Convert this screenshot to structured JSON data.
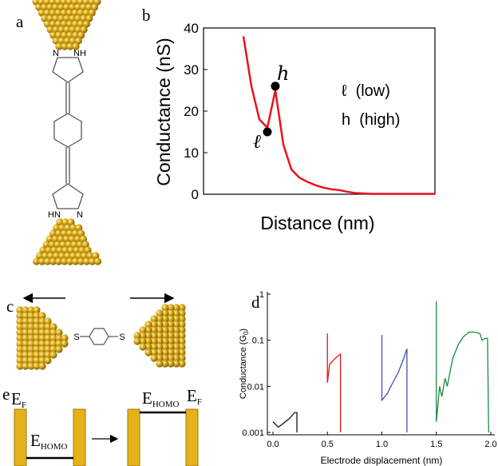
{
  "labels": [
    "a",
    "b",
    "c",
    "d",
    "e"
  ],
  "molecule_a": {
    "top": [
      "N",
      "NH"
    ],
    "bottom": [
      "HN",
      "N"
    ]
  },
  "molecule_c": {
    "atoms": [
      "S",
      "S"
    ]
  },
  "chart_data": [
    {
      "type": "line",
      "y_label": "Conductance (nS)",
      "x_label": "Distance (nm)",
      "ylim": [
        0,
        40
      ],
      "yticks": [
        0,
        10,
        20,
        30,
        40
      ],
      "series": [
        {
          "color": "#e8141a",
          "values": [
            null,
            null,
            null,
            null,
            null,
            38,
            26,
            18,
            16,
            25,
            12,
            6,
            4,
            3,
            2.2,
            1.6,
            1.2,
            1,
            0.6,
            0.3,
            0.2,
            0.1,
            0.1,
            0.1,
            0.1,
            0.1,
            0.1,
            0.1,
            0.1,
            0.1
          ]
        },
        {
          "color": "#000000",
          "marker": "dot",
          "values": [
            null,
            null,
            null,
            null,
            null,
            null,
            null,
            null,
            15,
            26,
            null,
            null,
            null,
            null,
            null,
            null,
            null,
            null,
            null,
            null,
            null,
            null,
            null,
            null,
            null,
            null,
            null,
            null,
            null,
            null
          ]
        }
      ],
      "point_labels": [
        "ℓ",
        "h"
      ],
      "legend_text": [
        "ℓ  (low)",
        "h  (high)"
      ]
    },
    {
      "type": "line",
      "log_y": true,
      "y_label": {
        "main": "Conductance (G",
        "sub": "0",
        "end": ")"
      },
      "x_label": "Electrode displacement (nm)",
      "xlim": [
        0,
        2
      ],
      "xticks": [
        {
          "value": 0,
          "label": "0.0"
        },
        {
          "value": 0.5,
          "label": "0.5"
        },
        {
          "value": 1,
          "label": "1.0"
        },
        {
          "value": 1.5,
          "label": "1.5"
        },
        {
          "value": 2,
          "label": "2.0"
        }
      ],
      "ylim": [
        0.001,
        1
      ],
      "yticks": [
        0.001,
        0.01,
        0.1,
        1
      ],
      "series": [
        {
          "color": "#111111",
          "x": [
            0,
            0.05,
            0.1,
            0.15,
            0.2,
            0.22,
            0.22
          ],
          "values": [
            0.0017,
            0.0013,
            0.0016,
            0.002,
            0.0027,
            0.0027,
            0.001
          ]
        },
        {
          "color": "#e8141a",
          "x": [
            0.5,
            0.5,
            0.52,
            0.57,
            0.62,
            0.62
          ],
          "values": [
            0.14,
            0.012,
            0.03,
            0.04,
            0.05,
            0.001
          ]
        },
        {
          "color": "#3a55b4",
          "x": [
            1,
            1,
            1.05,
            1.1,
            1.15,
            1.2,
            1.23,
            1.23
          ],
          "values": [
            0.13,
            0.005,
            0.007,
            0.012,
            0.02,
            0.04,
            0.065,
            0.001
          ]
        },
        {
          "color": "#1e8a3c",
          "x": [
            1.5,
            1.5,
            1.53,
            1.55,
            1.58,
            1.6,
            1.65,
            1.7,
            1.75,
            1.8,
            1.85,
            1.9,
            1.92,
            1.95,
            1.97,
            1.98
          ],
          "values": [
            0.7,
            0.0017,
            0.01,
            0.006,
            0.015,
            0.01,
            0.04,
            0.08,
            0.12,
            0.15,
            0.15,
            0.14,
            0.1,
            0.11,
            0.11,
            0.001
          ]
        }
      ]
    }
  ],
  "energy_e": {
    "fermi": [
      {
        "main": "E",
        "sub": "F"
      },
      {
        "main": "E",
        "sub": "F"
      }
    ],
    "homo": [
      {
        "main": "E",
        "sub": "HOMO"
      },
      {
        "main": "E",
        "sub": "HOMO"
      }
    ]
  }
}
